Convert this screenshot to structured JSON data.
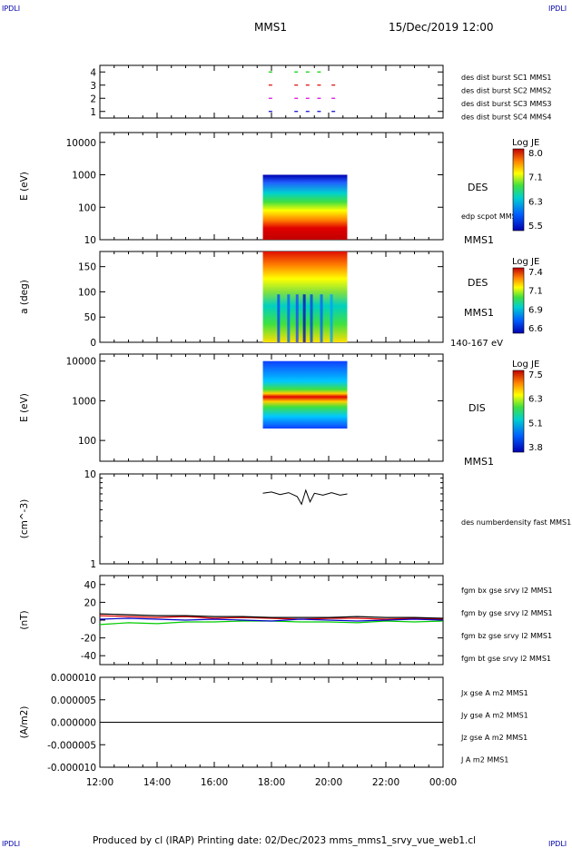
{
  "header": {
    "corner_tl": "IPDLI",
    "corner_tr": "IPDLI",
    "corner_bl": "IPDLI",
    "corner_br": "IPDLI",
    "title": "MMS1",
    "date": "15/Dec/2019 12:00"
  },
  "footer": {
    "text": "Produced by cl (IRAP)   Printing date: 02/Dec/2023   mms_mms1_srvy_vue_web1.cl"
  },
  "colors": {
    "blue": "#0000cc",
    "magenta": "#dd00dd",
    "red": "#dd0000",
    "green": "#00cc00",
    "black": "#000000"
  },
  "chart_data": [
    {
      "type": "scatter",
      "name": "burst availability",
      "x_range": [
        "12:00",
        "00:00"
      ],
      "ylim": [
        0.5,
        4.5
      ],
      "yticks": [
        "1",
        "2",
        "3",
        "4"
      ],
      "series": [
        {
          "name": "des dist burst SC1 MMS1",
          "y": 1,
          "color": "#0000cc",
          "x_hours": [
            17.9,
            18.8,
            19.2,
            19.6,
            20.1
          ]
        },
        {
          "name": "des dist burst SC2 MMS2",
          "y": 2,
          "color": "#dd00dd",
          "x_hours": [
            17.9,
            18.8,
            19.2,
            19.6,
            20.1
          ]
        },
        {
          "name": "des dist burst SC3 MMS3",
          "y": 3,
          "color": "#dd0000",
          "x_hours": [
            17.9,
            18.8,
            19.2,
            19.6,
            20.1
          ]
        },
        {
          "name": "des dist burst SC4 MMS4",
          "y": 4,
          "color": "#00cc00",
          "x_hours": [
            17.9,
            18.8,
            19.2,
            19.6
          ]
        }
      ]
    },
    {
      "type": "heatmap",
      "name": "DES energy spectrogram",
      "ylabel": "E (eV)",
      "yscale": "log",
      "ylim": [
        10,
        20000
      ],
      "yticks": [
        "10",
        "100",
        "1000",
        "10000"
      ],
      "data_x_range_hours": [
        17.7,
        20.65
      ],
      "data_y_range": [
        10,
        1000
      ],
      "side_labels": [
        "DES",
        "edp scpot MMS1",
        "MMS1"
      ],
      "colorbar": {
        "title": "Log JE",
        "max": "8.0",
        "mid1": "7.1",
        "mid2": "6.3",
        "min": "5.5"
      }
    },
    {
      "type": "heatmap",
      "name": "DES pitch angle distribution",
      "ylabel": "a (deg)",
      "ylim": [
        0,
        180
      ],
      "yticks": [
        "0",
        "50",
        "100",
        "150"
      ],
      "data_x_range_hours": [
        17.7,
        20.65
      ],
      "side_labels": [
        "DES",
        "MMS1",
        "140-167 eV"
      ],
      "colorbar": {
        "title": "Log JE",
        "max": "7.4",
        "mid1": "7.1",
        "mid2": "6.9",
        "min": "6.6"
      }
    },
    {
      "type": "heatmap",
      "name": "DIS energy spectrogram",
      "ylabel": "E (eV)",
      "yscale": "log",
      "ylim": [
        30,
        15000
      ],
      "yticks": [
        "100",
        "1000",
        "10000"
      ],
      "data_x_range_hours": [
        17.7,
        20.65
      ],
      "data_y_range": [
        200,
        10000
      ],
      "side_labels": [
        "DIS",
        "MMS1"
      ],
      "colorbar": {
        "title": "Log JE",
        "max": "7.5",
        "mid1": "6.3",
        "mid2": "5.1",
        "min": "3.8"
      }
    },
    {
      "type": "line",
      "name": "density",
      "ylabel": "(cm^-3)",
      "yscale": "log",
      "ylim": [
        1,
        10
      ],
      "yticks": [
        "1",
        "10"
      ],
      "series": [
        {
          "name": "des numberdensity fast MMS1",
          "color": "#000000",
          "x": [
            17.7,
            18.0,
            18.3,
            18.6,
            18.9,
            19.05,
            19.2,
            19.35,
            19.5,
            19.8,
            20.1,
            20.4,
            20.65
          ],
          "y": [
            6.1,
            6.3,
            5.9,
            6.2,
            5.6,
            4.6,
            6.6,
            4.9,
            6.1,
            5.8,
            6.2,
            5.8,
            6.0
          ]
        }
      ]
    },
    {
      "type": "line",
      "name": "magnetic field",
      "ylabel": "(nT)",
      "ylim": [
        -50,
        50
      ],
      "yticks": [
        "-40",
        "-20",
        "0",
        "20",
        "40"
      ],
      "series": [
        {
          "name": "fgm bx gse srvy l2 MMS1",
          "color": "#dd0000",
          "x": [
            12,
            13,
            14,
            15,
            16,
            17,
            18,
            19,
            20,
            21,
            22,
            23,
            24
          ],
          "y": [
            5,
            4,
            3,
            4,
            2,
            3,
            2,
            1,
            2,
            2,
            1,
            2,
            1
          ]
        },
        {
          "name": "fgm by gse srvy l2 MMS1",
          "color": "#00cc00",
          "x": [
            12,
            13,
            14,
            15,
            16,
            17,
            18,
            19,
            20,
            21,
            22,
            23,
            24
          ],
          "y": [
            -5,
            -3,
            -4,
            -2,
            -2,
            -1,
            -1,
            -2,
            -2,
            -3,
            -1,
            -2,
            -1
          ]
        },
        {
          "name": "fgm bz gse srvy l2 MMS1",
          "color": "#0000cc",
          "x": [
            12,
            13,
            14,
            15,
            16,
            17,
            18,
            19,
            20,
            21,
            22,
            23,
            24
          ],
          "y": [
            1,
            2,
            1,
            0,
            1,
            0,
            -1,
            1,
            0,
            -1,
            0,
            1,
            0
          ]
        },
        {
          "name": "fgm bt gse srvy l2 MMS1",
          "color": "#000000",
          "x": [
            12,
            13,
            14,
            15,
            16,
            17,
            18,
            19,
            20,
            21,
            22,
            23,
            24
          ],
          "y": [
            7,
            6,
            5,
            5,
            4,
            4,
            3,
            3,
            3,
            4,
            3,
            3,
            2
          ]
        }
      ]
    },
    {
      "type": "line",
      "name": "current density",
      "ylabel": "(A/m2)",
      "ylim": [
        -1e-05,
        1e-05
      ],
      "yticks": [
        "-0.000010",
        "-0.000005",
        "0.000000",
        "0.000005",
        "0.000010"
      ],
      "xlabel_ticks": [
        "12:00",
        "14:00",
        "16:00",
        "18:00",
        "20:00",
        "22:00",
        "00:00"
      ],
      "series": [
        {
          "name": "Jx gse A m2 MMS1",
          "color": "#dd0000",
          "x": [
            12,
            24
          ],
          "y": [
            0,
            0
          ]
        },
        {
          "name": "Jy gse A m2 MMS1",
          "color": "#00cc00",
          "x": [
            12,
            24
          ],
          "y": [
            0,
            0
          ]
        },
        {
          "name": "Jz gse A m2 MMS1",
          "color": "#0000cc",
          "x": [
            12,
            24
          ],
          "y": [
            0,
            0
          ]
        },
        {
          "name": "J A m2 MMS1",
          "color": "#000000",
          "x": [
            12,
            24
          ],
          "y": [
            0,
            0
          ]
        }
      ]
    }
  ]
}
